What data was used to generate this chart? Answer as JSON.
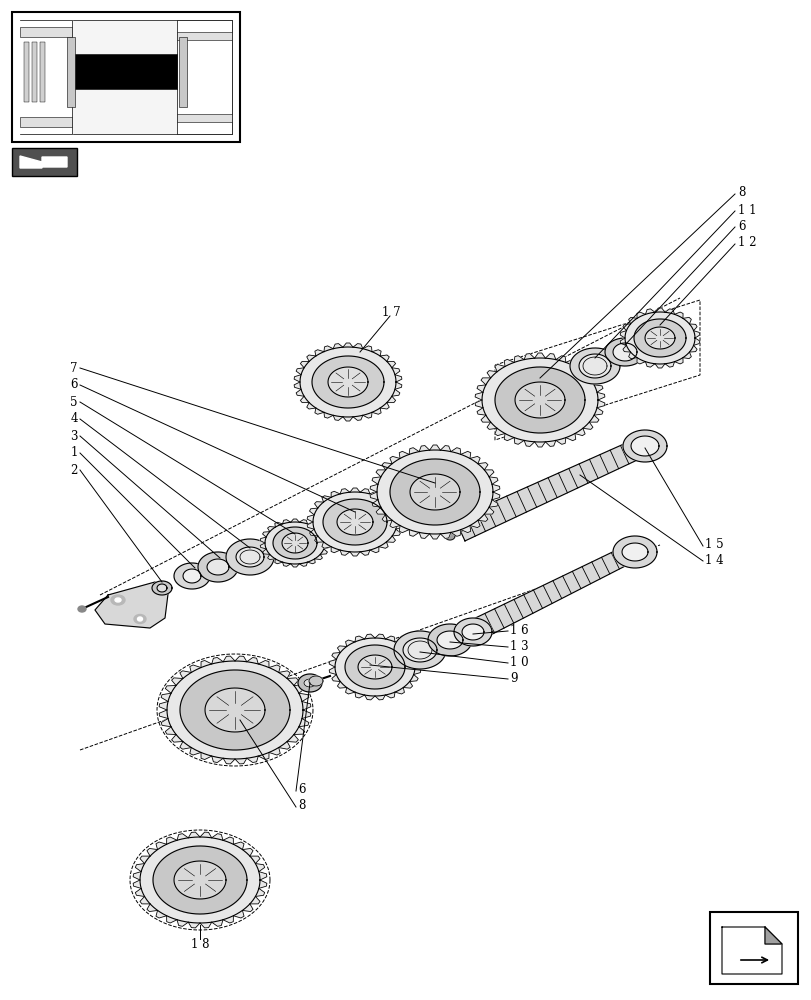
{
  "bg_color": "#ffffff",
  "line_color": "#000000",
  "fig_width": 8.12,
  "fig_height": 10.0,
  "lw": 0.8,
  "lw_thin": 0.5,
  "gray_light": "#e8e8e8",
  "gray_mid": "#d0d0d0",
  "gray_dark": "#b0b0b0",
  "gray_fill": "#c8c8c8",
  "white": "#ffffff",
  "black": "#000000"
}
